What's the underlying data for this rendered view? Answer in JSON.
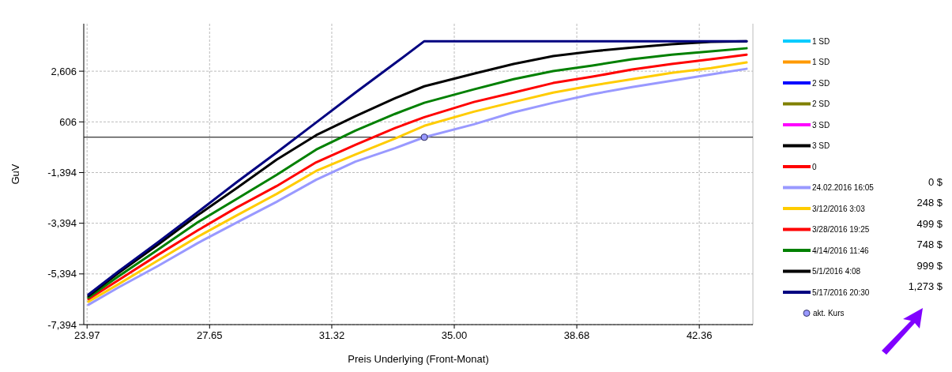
{
  "chart_data": {
    "type": "line",
    "xlabel": "Preis Underlying (Front-Monat)",
    "ylabel": "GuV",
    "x": [
      24.01,
      24.91,
      26.1,
      27.29,
      28.47,
      29.66,
      30.85,
      32.03,
      33.22,
      34.1,
      35.59,
      36.78,
      37.97,
      39.15,
      40.34,
      41.53,
      42.71,
      43.78
    ],
    "xlim": [
      23.87,
      43.97
    ],
    "xticks": [
      23.97,
      27.65,
      31.32,
      {
        "value": 35,
        "label": "35.00"
      },
      38.68,
      42.36
    ],
    "ylim": [
      -7394,
      4480
    ],
    "yticks": [
      {
        "value": -7394,
        "label": "-7,394"
      },
      {
        "value": -5394,
        "label": "-5,394"
      },
      {
        "value": -3394,
        "label": "-3,394"
      },
      {
        "value": -1394,
        "label": "-1,394"
      },
      606,
      {
        "value": 2606,
        "label": "2,606"
      }
    ],
    "grid": true,
    "legend": "right",
    "ref_lines": [
      {
        "axis": "y",
        "value": 0,
        "color": "#000000"
      }
    ],
    "annotations": [
      "0 $",
      "248 $",
      "499 $",
      "748 $",
      "999 $",
      "1,273 $"
    ],
    "series": [
      {
        "name": "1 SD",
        "color": "#00ccff",
        "values": [
          null,
          null,
          null,
          null,
          null,
          null,
          null,
          null,
          null,
          null,
          null,
          null,
          null,
          null,
          null,
          null,
          null,
          null
        ]
      },
      {
        "name": "1 SD",
        "color": "#ff9900",
        "values": [
          null,
          null,
          null,
          null,
          null,
          null,
          null,
          null,
          null,
          null,
          null,
          null,
          null,
          null,
          null,
          null,
          null,
          null
        ]
      },
      {
        "name": "2 SD",
        "color": "#0000ff",
        "values": [
          null,
          null,
          null,
          null,
          null,
          null,
          null,
          null,
          null,
          null,
          null,
          null,
          null,
          null,
          null,
          null,
          null,
          null
        ]
      },
      {
        "name": "2 SD",
        "color": "#808000",
        "values": [
          null,
          null,
          null,
          null,
          null,
          null,
          null,
          null,
          null,
          null,
          null,
          null,
          null,
          null,
          null,
          null,
          null,
          null
        ]
      },
      {
        "name": "3 SD",
        "color": "#ff00ff",
        "values": [
          null,
          null,
          null,
          null,
          null,
          null,
          null,
          null,
          null,
          null,
          null,
          null,
          null,
          null,
          null,
          null,
          null,
          null
        ]
      },
      {
        "name": "3 SD",
        "color": "#000000",
        "values": [
          null,
          null,
          null,
          null,
          null,
          null,
          null,
          null,
          null,
          null,
          null,
          null,
          null,
          null,
          null,
          null,
          null,
          null
        ]
      },
      {
        "name": "0",
        "color": "#ff0000",
        "values": [
          null,
          null,
          null,
          null,
          null,
          null,
          null,
          null,
          null,
          null,
          null,
          null,
          null,
          null,
          null,
          null,
          null,
          null
        ]
      },
      {
        "name": "24.02.2016 16:05",
        "color": "#9999ff",
        "values": [
          -6610,
          -5930,
          -5080,
          -4180,
          -3360,
          -2550,
          -1680,
          -960,
          -430,
          0,
          510,
          980,
          1360,
          1700,
          1980,
          2230,
          2480,
          2700
        ]
      },
      {
        "name": "3/12/2016 3:03",
        "color": "#ffcc00",
        "values": [
          -6490,
          -5800,
          -4860,
          -3930,
          -3080,
          -2240,
          -1330,
          -680,
          -50,
          450,
          1010,
          1390,
          1760,
          2040,
          2290,
          2540,
          2730,
          2950
        ]
      },
      {
        "name": "3/28/2016 19:25",
        "color": "#ff0000",
        "values": [
          -6390,
          -5640,
          -4640,
          -3680,
          -2770,
          -1930,
          -990,
          -300,
          360,
          790,
          1390,
          1760,
          2140,
          2390,
          2670,
          2890,
          3080,
          3260
        ]
      },
      {
        "name": "4/14/2016 11:46",
        "color": "#008000",
        "values": [
          -6330,
          -5490,
          -4430,
          -3360,
          -2430,
          -1490,
          -490,
          260,
          920,
          1360,
          1890,
          2290,
          2610,
          2830,
          3080,
          3260,
          3390,
          3510
        ]
      },
      {
        "name": "5/1/2016 4:08",
        "color": "#000000",
        "values": [
          -6270,
          -5360,
          -4240,
          -3080,
          -2000,
          -890,
          80,
          830,
          1540,
          2010,
          2510,
          2890,
          3200,
          3390,
          3540,
          3670,
          3760,
          3790
        ]
      },
      {
        "name": "5/17/2016 20:30",
        "color": "#000080",
        "values": [
          -6210,
          -5300,
          -4140,
          -2960,
          -1770,
          -610,
          580,
          1760,
          2920,
          3790,
          3790,
          3790,
          3790,
          3790,
          3790,
          3790,
          3790,
          3790
        ]
      },
      {
        "name": "akt. Kurs",
        "type": "scatter",
        "color": "#9999ff",
        "x": [
          34.1
        ],
        "values": [
          0
        ]
      }
    ]
  }
}
